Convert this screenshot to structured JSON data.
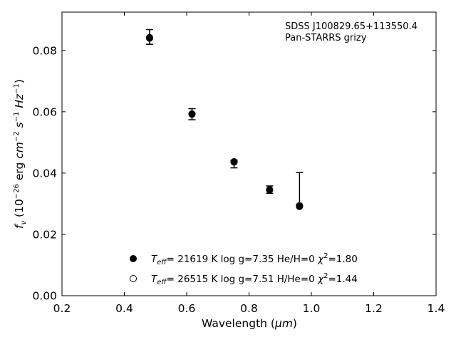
{
  "chart_data": {
    "type": "scatter",
    "xlabel_prefix": "Wavelength (",
    "xlabel_unit": "μm",
    "xlabel_suffix": ")",
    "ylabel": "f_ν (10^-26 erg cm^-2 s^-1 Hz^-1)",
    "xlim": [
      0.2,
      1.4
    ],
    "ylim": [
      0.0,
      0.0925
    ],
    "xticks": [
      0.2,
      0.4,
      0.6,
      0.8,
      1.0,
      1.2,
      1.4
    ],
    "xtick_labels": [
      "0.2",
      "0.4",
      "0.6",
      "0.8",
      "1.0",
      "1.2",
      "1.4"
    ],
    "yticks": [
      0.0,
      0.02,
      0.04,
      0.06,
      0.08
    ],
    "ytick_labels": [
      "0.00",
      "0.02",
      "0.04",
      "0.06",
      "0.08"
    ],
    "grid": false,
    "annotation": [
      "SDSS J100829.65+113550.4",
      "Pan-STARRS grizy"
    ],
    "observed": {
      "x": [
        0.481,
        0.617,
        0.752,
        0.866,
        0.962
      ],
      "y": [
        0.0844,
        0.0592,
        0.0433,
        0.0348,
        0.0295
      ],
      "yerr_low": [
        0.0024,
        0.0018,
        0.0016,
        0.0014,
        0.0
      ],
      "yerr_high": [
        0.0024,
        0.0018,
        0.0008,
        0.001,
        0.0107
      ]
    },
    "series": [
      {
        "name": "Teff= 21619 K log g=7.35 He/H=0 χ²=1.80",
        "marker": "filled",
        "x": [
          0.481,
          0.617,
          0.752,
          0.866,
          0.962
        ],
        "y": [
          0.0842,
          0.0593,
          0.0436,
          0.0345,
          0.0291
        ]
      },
      {
        "name": "Teff= 26515 K log g=7.51 H/He=0 χ²=1.44",
        "marker": "open",
        "x": [
          0.481,
          0.617,
          0.752,
          0.866,
          0.962
        ],
        "y": [
          0.084,
          0.0592,
          0.0437,
          0.0346,
          0.0294
        ]
      }
    ],
    "legend": [
      {
        "marker": "filled",
        "teff_sub": "eff",
        "teff_value": "= 21619 K  log g=7.35  He/H=0  ",
        "chi_value": "=1.80"
      },
      {
        "marker": "open",
        "teff_sub": "eff",
        "teff_value": "= 26515 K  log g=7.51  H/He=0  ",
        "chi_value": "=1.44"
      }
    ],
    "legend_position": "lower-center"
  }
}
